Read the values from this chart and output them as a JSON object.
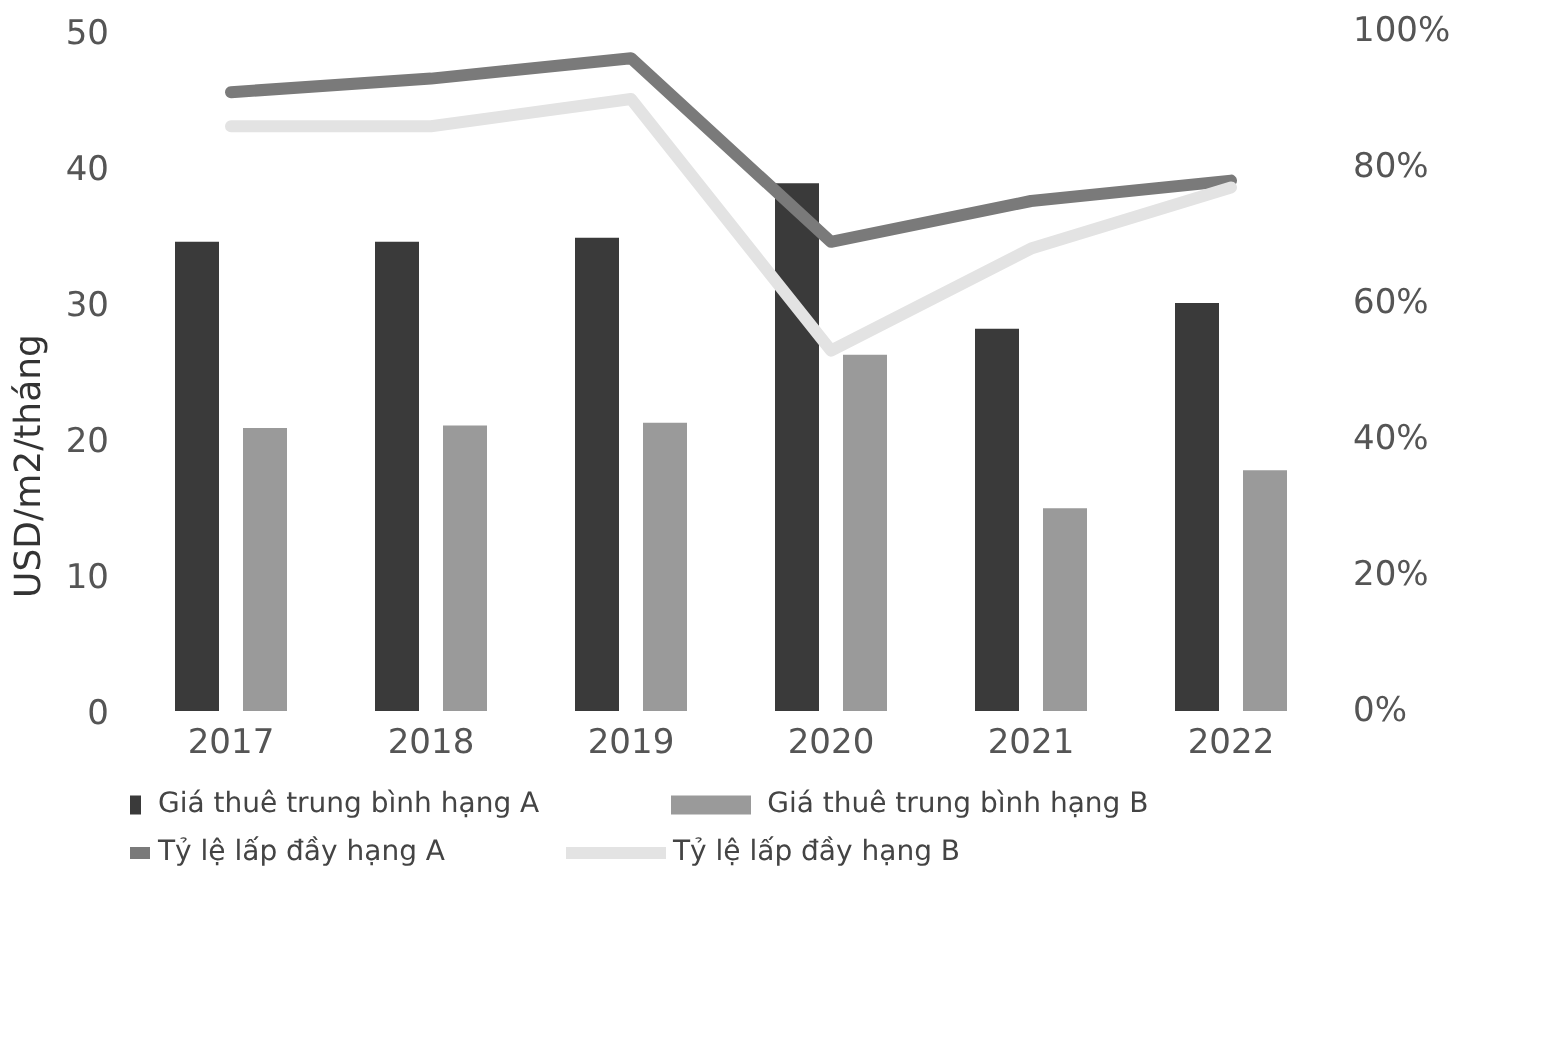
{
  "chart_data": {
    "type": "bar",
    "categories": [
      "2017",
      "2018",
      "2019",
      "2020",
      "2021",
      "2022"
    ],
    "ylabel": "USD/m2/tháng",
    "ylim": [
      0,
      50
    ],
    "yticks": [
      0,
      10,
      20,
      30,
      40,
      50
    ],
    "y2lim": [
      0,
      100
    ],
    "y2ticks": [
      {
        "value": 0,
        "label": "0%"
      },
      {
        "value": 20,
        "label": "20%"
      },
      {
        "value": 40,
        "label": "40%"
      },
      {
        "value": 60,
        "label": "60%"
      },
      {
        "value": 80,
        "label": "80%"
      },
      {
        "value": 100,
        "label": "100%"
      }
    ],
    "series": [
      {
        "name": "Giá thuê trung bình hạng A",
        "color": "#3a3a3a",
        "values": [
          34.5,
          34.5,
          34.8,
          38.8,
          28.1,
          30.0
        ]
      },
      {
        "name": "Giá thuê trung bình hạng B",
        "color": "#9a9a9a",
        "values": [
          20.8,
          21.0,
          21.2,
          26.2,
          14.9,
          17.7
        ]
      },
      {
        "name": "Tỷ lệ lấp đầy hạng A",
        "type": "line",
        "axis": "y2",
        "color": "#7a7a7a",
        "values": [
          91,
          93,
          96,
          69,
          75,
          78
        ]
      },
      {
        "name": "Tỷ lệ lấp đầy hạng B",
        "type": "line",
        "axis": "y2",
        "color": "#e3e3e3",
        "values": [
          86,
          86,
          90,
          53,
          68,
          77
        ]
      }
    ],
    "grid": false,
    "legend": "bottom",
    "line_style": "solid",
    "marker": "none"
  }
}
